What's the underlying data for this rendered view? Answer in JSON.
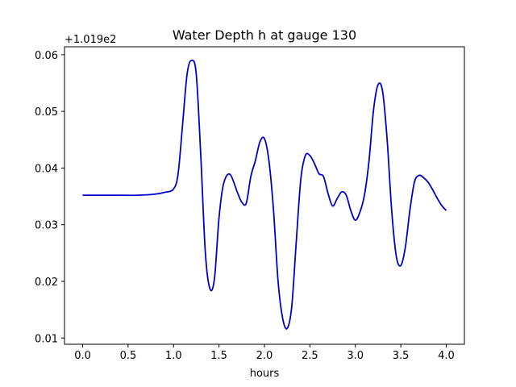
{
  "chart_data": {
    "type": "line",
    "title": "Water Depth h at gauge 130",
    "xlabel": "hours",
    "ylabel": "",
    "offset_label": "+1.019e2",
    "xlim": [
      -0.2,
      4.2
    ],
    "ylim": [
      0.0089,
      0.0614
    ],
    "x_ticks": [
      0.0,
      0.5,
      1.0,
      1.5,
      2.0,
      2.5,
      3.0,
      3.5,
      4.0
    ],
    "x_tick_labels": [
      "0.0",
      "0.5",
      "1.0",
      "1.5",
      "2.0",
      "2.5",
      "3.0",
      "3.5",
      "4.0"
    ],
    "y_ticks": [
      0.01,
      0.02,
      0.03,
      0.04,
      0.05,
      0.06
    ],
    "y_tick_labels": [
      "0.01",
      "0.02",
      "0.03",
      "0.04",
      "0.05",
      "0.06"
    ],
    "grid": false,
    "series": [
      {
        "color": "#0000cc",
        "x": [
          0.0,
          0.2,
          0.4,
          0.6,
          0.8,
          0.9,
          1.0,
          1.05,
          1.1,
          1.15,
          1.2,
          1.25,
          1.3,
          1.35,
          1.4,
          1.45,
          1.5,
          1.55,
          1.62,
          1.7,
          1.75,
          1.8,
          1.85,
          1.9,
          1.95,
          2.0,
          2.05,
          2.1,
          2.15,
          2.2,
          2.25,
          2.3,
          2.35,
          2.4,
          2.45,
          2.5,
          2.55,
          2.6,
          2.65,
          2.7,
          2.75,
          2.8,
          2.85,
          2.9,
          2.95,
          3.0,
          3.05,
          3.1,
          3.15,
          3.2,
          3.25,
          3.3,
          3.35,
          3.4,
          3.45,
          3.5,
          3.55,
          3.6,
          3.65,
          3.7,
          3.75,
          3.8,
          3.85,
          3.9,
          3.95,
          4.0
        ],
        "y": [
          0.0352,
          0.0352,
          0.0352,
          0.0352,
          0.0354,
          0.0357,
          0.0363,
          0.039,
          0.0478,
          0.0567,
          0.059,
          0.0565,
          0.042,
          0.025,
          0.0187,
          0.0205,
          0.0312,
          0.0372,
          0.0389,
          0.0358,
          0.034,
          0.0338,
          0.0385,
          0.0413,
          0.0446,
          0.0452,
          0.0412,
          0.0325,
          0.02,
          0.0135,
          0.0117,
          0.0155,
          0.027,
          0.038,
          0.0422,
          0.0422,
          0.0408,
          0.039,
          0.0385,
          0.0355,
          0.0333,
          0.0346,
          0.0358,
          0.0352,
          0.0325,
          0.0308,
          0.0322,
          0.0352,
          0.0412,
          0.0502,
          0.0547,
          0.0535,
          0.045,
          0.0325,
          0.0245,
          0.0228,
          0.026,
          0.0325,
          0.0375,
          0.0387,
          0.0383,
          0.0375,
          0.0362,
          0.0347,
          0.0334,
          0.0325
        ]
      }
    ]
  }
}
